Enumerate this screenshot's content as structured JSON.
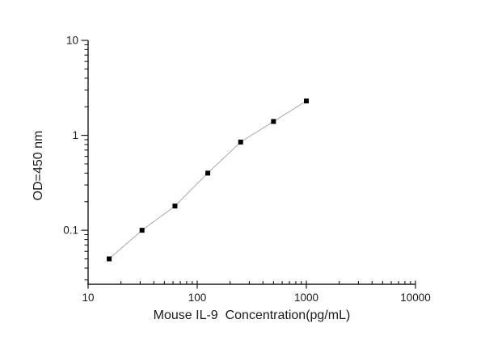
{
  "chart_data": {
    "type": "line",
    "title": "",
    "xlabel": "Mouse IL-9  Concentration(pg/mL)",
    "ylabel": "OD=450 nm",
    "xscale": "log",
    "yscale": "log",
    "xlim": [
      10,
      10000
    ],
    "ylim": [
      0.027,
      10
    ],
    "x": [
      15.6,
      31.2,
      62.5,
      125,
      250,
      500,
      1000
    ],
    "y": [
      0.05,
      0.1,
      0.18,
      0.4,
      0.85,
      1.4,
      2.3
    ],
    "x_major_ticks": [
      10,
      100,
      1000,
      10000
    ],
    "x_tick_labels": [
      "10",
      "100",
      "1000",
      "10000"
    ],
    "y_major_ticks": [
      10,
      1,
      0.1
    ],
    "y_tick_labels": [
      "10",
      "1",
      "0.1"
    ],
    "grid": false,
    "legend": null,
    "marker": "square",
    "marker_size": 6,
    "colors": {
      "background": "#ffffff",
      "axis": "#1a1a1a",
      "text": "#1a1a1a",
      "line": "#a8a8a8",
      "marker": "#000000"
    }
  }
}
